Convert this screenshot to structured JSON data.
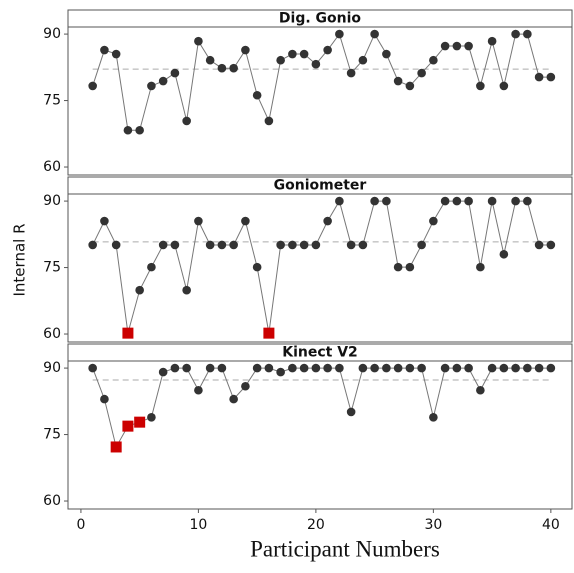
{
  "chart_data": {
    "type": "line",
    "xlabel": "Participant Numbers",
    "ylabel": "Internal R",
    "x": [
      1,
      2,
      3,
      4,
      5,
      6,
      7,
      8,
      9,
      10,
      11,
      12,
      13,
      14,
      15,
      16,
      17,
      18,
      19,
      20,
      21,
      22,
      23,
      24,
      25,
      26,
      27,
      28,
      29,
      30,
      31,
      32,
      33,
      34,
      35,
      36,
      37,
      38,
      39,
      40
    ],
    "xlim": [
      -1.1,
      41.8
    ],
    "xticks": [
      0,
      10,
      20,
      30,
      40
    ],
    "ylim": [
      58.2,
      91.6
    ],
    "yticks": [
      60,
      75,
      90
    ],
    "color": "#333333",
    "line_color": "#777777",
    "reference_color": "#aaaaaa",
    "panels": [
      {
        "title": "Dig. Gonio",
        "reference_line": 82.1,
        "values": [
          78.3,
          86.4,
          85.5,
          68.3,
          68.3,
          78.3,
          79.4,
          81.2,
          70.4,
          88.4,
          84.1,
          82.3,
          82.3,
          86.4,
          76.2,
          70.4,
          84.1,
          85.5,
          85.5,
          83.2,
          86.4,
          90,
          81.2,
          84.1,
          90,
          85.5,
          79.4,
          78.3,
          81.2,
          84.1,
          87.3,
          87.3,
          87.3,
          78.3,
          88.4,
          78.3,
          90,
          90,
          80.3,
          80.3
        ],
        "point_colors": [
          "#333333",
          "#333333",
          "#333333",
          "#333333",
          "#333333",
          "#333333",
          "#333333",
          "#333333",
          "#333333",
          "#333333",
          "#333333",
          "#333333",
          "#333333",
          "#333333",
          "#333333",
          "#333333",
          "#333333",
          "#333333",
          "#333333",
          "#333333",
          "#333333",
          "#333333",
          "#333333",
          "#333333",
          "#333333",
          "#333333",
          "#333333",
          "#333333",
          "#333333",
          "#333333",
          "#333333",
          "#333333",
          "#333333",
          "#333333",
          "#333333",
          "#333333",
          "#333333",
          "#333333",
          "#333333",
          "#333333"
        ]
      },
      {
        "title": "Goniometer",
        "reference_line": 80.8,
        "values": [
          80.1,
          85.5,
          80.1,
          60.2,
          69.9,
          75.1,
          80.1,
          80.1,
          69.9,
          85.5,
          80.1,
          80.1,
          80.1,
          85.5,
          75.1,
          60.2,
          80.1,
          80.1,
          80.1,
          80.1,
          85.5,
          90,
          80.1,
          80.1,
          90,
          90,
          75.1,
          75.1,
          80.1,
          85.5,
          90,
          90,
          90,
          75.1,
          90,
          78,
          90,
          90,
          80.1,
          80.1
        ],
        "point_colors": [
          "#333333",
          "#333333",
          "#333333",
          "#cc0000",
          "#333333",
          "#333333",
          "#333333",
          "#333333",
          "#333333",
          "#333333",
          "#333333",
          "#333333",
          "#333333",
          "#333333",
          "#333333",
          "#cc0000",
          "#333333",
          "#333333",
          "#333333",
          "#333333",
          "#333333",
          "#333333",
          "#333333",
          "#333333",
          "#333333",
          "#333333",
          "#333333",
          "#333333",
          "#333333",
          "#333333",
          "#333333",
          "#333333",
          "#333333",
          "#333333",
          "#333333",
          "#333333",
          "#333333",
          "#333333",
          "#333333",
          "#333333"
        ]
      },
      {
        "title": "Kinect V2",
        "reference_line": 87.3,
        "values": [
          90,
          83,
          72.2,
          76.9,
          77.8,
          78.9,
          89.1,
          90,
          90,
          85,
          90,
          90,
          83,
          85.9,
          90,
          90,
          89.1,
          90,
          90,
          90,
          90,
          90,
          80.1,
          90,
          90,
          90,
          90,
          90,
          90,
          78.9,
          90,
          90,
          90,
          85,
          90,
          90,
          90,
          90,
          90,
          90
        ],
        "point_colors": [
          "#333333",
          "#333333",
          "#cc0000",
          "#cc0000",
          "#cc0000",
          "#333333",
          "#333333",
          "#333333",
          "#333333",
          "#333333",
          "#333333",
          "#333333",
          "#333333",
          "#333333",
          "#333333",
          "#333333",
          "#333333",
          "#333333",
          "#333333",
          "#333333",
          "#333333",
          "#333333",
          "#333333",
          "#333333",
          "#333333",
          "#333333",
          "#333333",
          "#333333",
          "#333333",
          "#333333",
          "#333333",
          "#333333",
          "#333333",
          "#333333",
          "#333333",
          "#333333",
          "#333333",
          "#333333",
          "#333333",
          "#333333"
        ]
      }
    ]
  }
}
